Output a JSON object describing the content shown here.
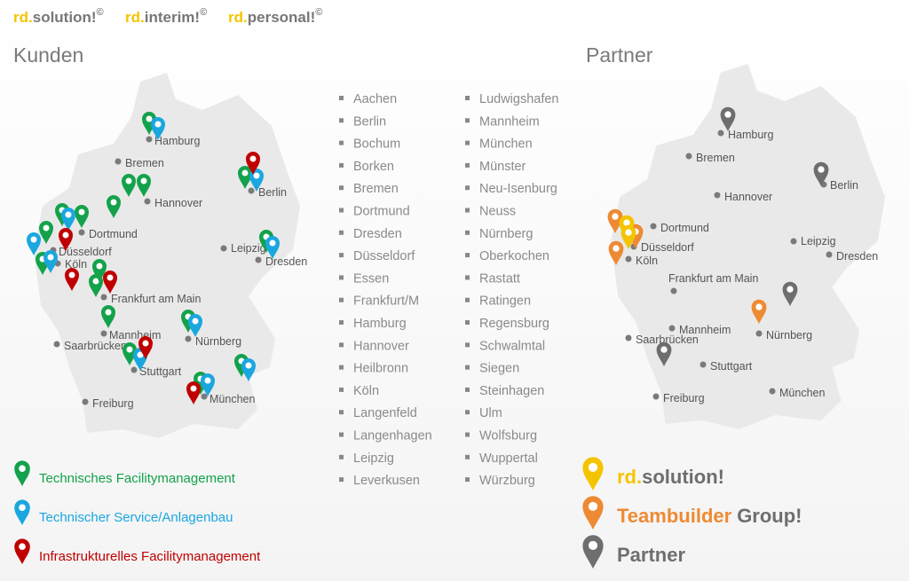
{
  "header": {
    "brands": [
      {
        "prefix": "rd.",
        "name": "solution!",
        "mark": "©"
      },
      {
        "prefix": "rd.",
        "name": "interim!",
        "mark": "©"
      },
      {
        "prefix": "rd.",
        "name": "personal!",
        "mark": "©"
      }
    ]
  },
  "customers": {
    "title": "Kunden",
    "map_cities": [
      "Hamburg",
      "Bremen",
      "Hannover",
      "Berlin",
      "Dortmund",
      "Düsseldorf",
      "Köln",
      "Leipzig",
      "Dresden",
      "Frankfurt am Main",
      "Mannheim",
      "Nürnberg",
      "Saarbrücken",
      "Stuttgart",
      "Freiburg",
      "München"
    ],
    "legend": [
      {
        "label": "Technisches Facilitymanagement",
        "color": "#13a24b"
      },
      {
        "label": "Technischer Service/Anlagenbau",
        "color": "#1aa7e0"
      },
      {
        "label": "Infrastrukturelles Facilitymanagement",
        "color": "#c00000"
      }
    ]
  },
  "locations": {
    "column_1": [
      "Aachen",
      "Berlin",
      "Bochum",
      "Borken",
      "Bremen",
      "Dortmund",
      "Dresden",
      "Düsseldorf",
      "Essen",
      "Frankfurt/M",
      "Hamburg",
      "Hannover",
      "Heilbronn",
      "Köln",
      "Langenfeld",
      "Langenhagen",
      "Leipzig",
      "Leverkusen"
    ],
    "column_2": [
      "Ludwigshafen",
      "Mannheim",
      "München",
      "Münster",
      "Neu-Isenburg",
      "Neuss",
      "Nürnberg",
      "Oberkochen",
      "Rastatt",
      "Ratingen",
      "Regensburg",
      "Schwalmtal",
      "Siegen",
      "Steinhagen",
      "Ulm",
      "Wolfsburg",
      "Wuppertal",
      "Würzburg"
    ]
  },
  "partners": {
    "title": "Partner",
    "map_cities": [
      "Hamburg",
      "Bremen",
      "Hannover",
      "Berlin",
      "Dortmund",
      "Düsseldorf",
      "Köln",
      "Leipzig",
      "Dresden",
      "Frankfurt am Main",
      "Mannheim",
      "Nürnberg",
      "Saarbrücken",
      "Stuttgart",
      "Freiburg",
      "München"
    ],
    "legend": [
      {
        "prefix": "rd.",
        "name": "solution!",
        "color": "#f5c400"
      },
      {
        "prefix": "Teambuilder",
        "name": "Group!",
        "color": "#ee8a33"
      },
      {
        "name": "Partner",
        "color": "#6e6e6e"
      }
    ]
  }
}
